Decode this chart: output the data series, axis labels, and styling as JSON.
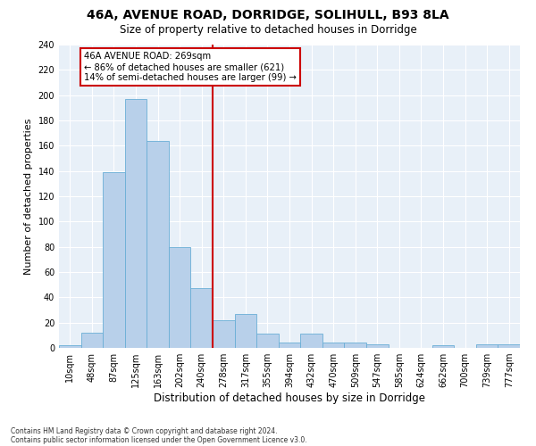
{
  "title1": "46A, AVENUE ROAD, DORRIDGE, SOLIHULL, B93 8LA",
  "title2": "Size of property relative to detached houses in Dorridge",
  "xlabel": "Distribution of detached houses by size in Dorridge",
  "ylabel": "Number of detached properties",
  "bar_labels": [
    "10sqm",
    "48sqm",
    "87sqm",
    "125sqm",
    "163sqm",
    "202sqm",
    "240sqm",
    "278sqm",
    "317sqm",
    "355sqm",
    "394sqm",
    "432sqm",
    "470sqm",
    "509sqm",
    "547sqm",
    "585sqm",
    "624sqm",
    "662sqm",
    "700sqm",
    "739sqm",
    "777sqm"
  ],
  "bar_values": [
    2,
    12,
    139,
    197,
    164,
    80,
    47,
    22,
    27,
    11,
    4,
    11,
    4,
    4,
    3,
    0,
    0,
    2,
    0,
    3,
    3
  ],
  "bar_color": "#b8d0ea",
  "bar_edge_color": "#6aaed6",
  "vline_color": "#cc0000",
  "annotation_title": "46A AVENUE ROAD: 269sqm",
  "annotation_line1": "← 86% of detached houses are smaller (621)",
  "annotation_line2": "14% of semi-detached houses are larger (99) →",
  "annotation_box_color": "#ffffff",
  "annotation_box_edge": "#cc0000",
  "bg_color": "#e8f0f8",
  "footer1": "Contains HM Land Registry data © Crown copyright and database right 2024.",
  "footer2": "Contains public sector information licensed under the Open Government Licence v3.0.",
  "ylim": [
    0,
    240
  ],
  "yticks": [
    0,
    20,
    40,
    60,
    80,
    100,
    120,
    140,
    160,
    180,
    200,
    220,
    240
  ],
  "title1_fontsize": 10,
  "title2_fontsize": 8.5,
  "xlabel_fontsize": 8.5,
  "ylabel_fontsize": 8,
  "tick_fontsize": 7,
  "footer_fontsize": 5.5,
  "vline_bin": 7
}
